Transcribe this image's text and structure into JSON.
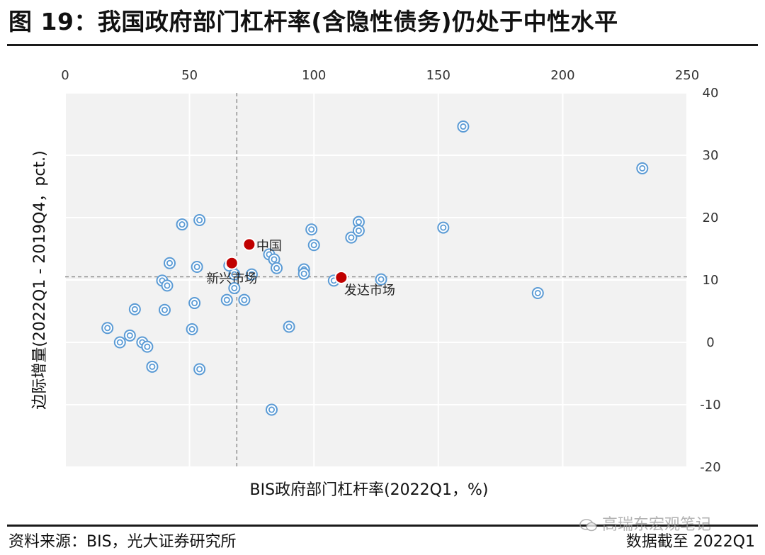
{
  "title": "图 19：我国政府部门杠杆率(含隐性债务)仍处于中性水平",
  "footer": {
    "source": "资料来源：BIS，光大证券研究所",
    "note": "数据截至 2022Q1",
    "watermark": "高瑞东宏观笔记"
  },
  "chart_data": {
    "type": "scatter",
    "xlabel": "BIS政府部门杠杆率(2022Q1，%)",
    "ylabel": "边际增量(2022Q1 - 2019Q4，pct.)",
    "xlim": [
      0,
      250
    ],
    "ylim": [
      -20,
      40
    ],
    "x_ticks": [
      0,
      50,
      100,
      150,
      200,
      250
    ],
    "y_ticks": [
      -20,
      -10,
      0,
      10,
      20,
      30,
      40
    ],
    "x_axis_position": "top",
    "y_axis_position": "right",
    "grid": true,
    "reference_lines": {
      "x": 69,
      "y": 10.5
    },
    "colors": {
      "point": "#5b9bd5",
      "highlight": "#c00000",
      "plot_bg": "#f2f2f2",
      "grid": "#ffffff"
    },
    "points": [
      {
        "x": 17,
        "y": 2.3
      },
      {
        "x": 22,
        "y": 0
      },
      {
        "x": 26,
        "y": 1.1
      },
      {
        "x": 28,
        "y": 5.3
      },
      {
        "x": 31,
        "y": 0
      },
      {
        "x": 33,
        "y": -0.7
      },
      {
        "x": 35,
        "y": -3.9
      },
      {
        "x": 39,
        "y": 9.9
      },
      {
        "x": 40,
        "y": 5.2
      },
      {
        "x": 41,
        "y": 9.1
      },
      {
        "x": 42,
        "y": 12.7
      },
      {
        "x": 47,
        "y": 18.9
      },
      {
        "x": 51,
        "y": 2.1
      },
      {
        "x": 52,
        "y": 6.3
      },
      {
        "x": 53,
        "y": 12.1
      },
      {
        "x": 54,
        "y": 19.6
      },
      {
        "x": 54,
        "y": -4.3
      },
      {
        "x": 65,
        "y": 6.8
      },
      {
        "x": 66,
        "y": 12.3
      },
      {
        "x": 68,
        "y": 8.7
      },
      {
        "x": 68,
        "y": 10.9
      },
      {
        "x": 72,
        "y": 6.8
      },
      {
        "x": 75,
        "y": 10.9
      },
      {
        "x": 82,
        "y": 14.1
      },
      {
        "x": 83,
        "y": -10.8
      },
      {
        "x": 84,
        "y": 13.3
      },
      {
        "x": 85,
        "y": 11.9
      },
      {
        "x": 90,
        "y": 2.5
      },
      {
        "x": 96,
        "y": 11.7
      },
      {
        "x": 96,
        "y": 11.0
      },
      {
        "x": 99,
        "y": 18.1
      },
      {
        "x": 100,
        "y": 15.6
      },
      {
        "x": 108,
        "y": 9.9
      },
      {
        "x": 115,
        "y": 16.8
      },
      {
        "x": 118,
        "y": 19.3
      },
      {
        "x": 118,
        "y": 17.9
      },
      {
        "x": 127,
        "y": 10.1
      },
      {
        "x": 152,
        "y": 18.4
      },
      {
        "x": 160,
        "y": 34.6
      },
      {
        "x": 190,
        "y": 7.9
      },
      {
        "x": 232,
        "y": 27.9
      }
    ],
    "highlights": [
      {
        "name": "中国",
        "x": 74,
        "y": 15.7
      },
      {
        "name": "新兴市场",
        "x": 67,
        "y": 12.7
      },
      {
        "name": "发达市场",
        "x": 111,
        "y": 10.4
      }
    ]
  }
}
